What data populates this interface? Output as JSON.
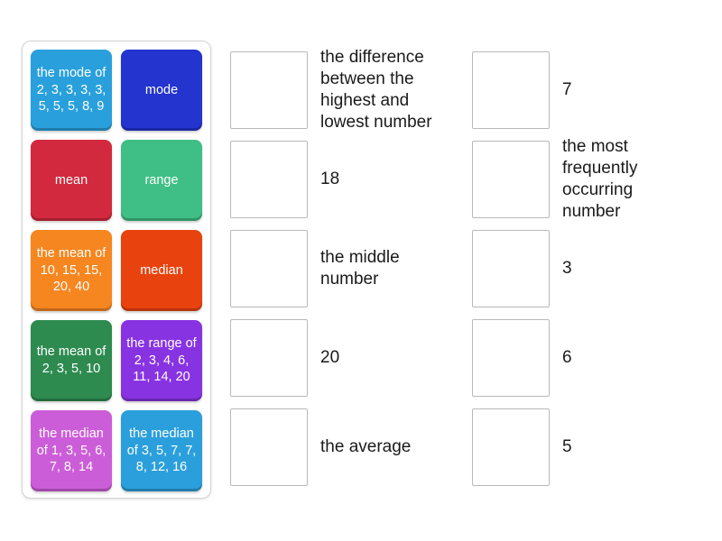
{
  "board": {
    "background_color": "#ffffff"
  },
  "tile_panel": {
    "tiles": [
      {
        "label": "the mode of 2, 3, 3, 3, 3, 5, 5, 5, 8, 9",
        "color": "#29a0dc"
      },
      {
        "label": "mode",
        "color": "#2334cf"
      },
      {
        "label": "mean",
        "color": "#d2293e"
      },
      {
        "label": "range",
        "color": "#3fbf85"
      },
      {
        "label": "the mean of 10, 15, 15, 20, 40",
        "color": "#f6861f"
      },
      {
        "label": "median",
        "color": "#e8430e"
      },
      {
        "label": "the mean of 2, 3, 5, 10",
        "color": "#2e8b50"
      },
      {
        "label": "the range of 2, 3, 4, 6, 11, 14, 20",
        "color": "#8833e2"
      },
      {
        "label": "the median of 1, 3, 5, 6, 7, 8, 14",
        "color": "#cc5dd8"
      },
      {
        "label": "the median of 3, 5, 7, 7, 8, 12, 16",
        "color": "#2b9fdc"
      }
    ]
  },
  "match_area": {
    "left_column": [
      {
        "label": "the difference between the highest and lowest number"
      },
      {
        "label": "18"
      },
      {
        "label": "the middle number"
      },
      {
        "label": "20"
      },
      {
        "label": "the average"
      }
    ],
    "right_column": [
      {
        "label": "7"
      },
      {
        "label": "the most frequently occurring number"
      },
      {
        "label": "3"
      },
      {
        "label": "6"
      },
      {
        "label": "5"
      }
    ]
  }
}
